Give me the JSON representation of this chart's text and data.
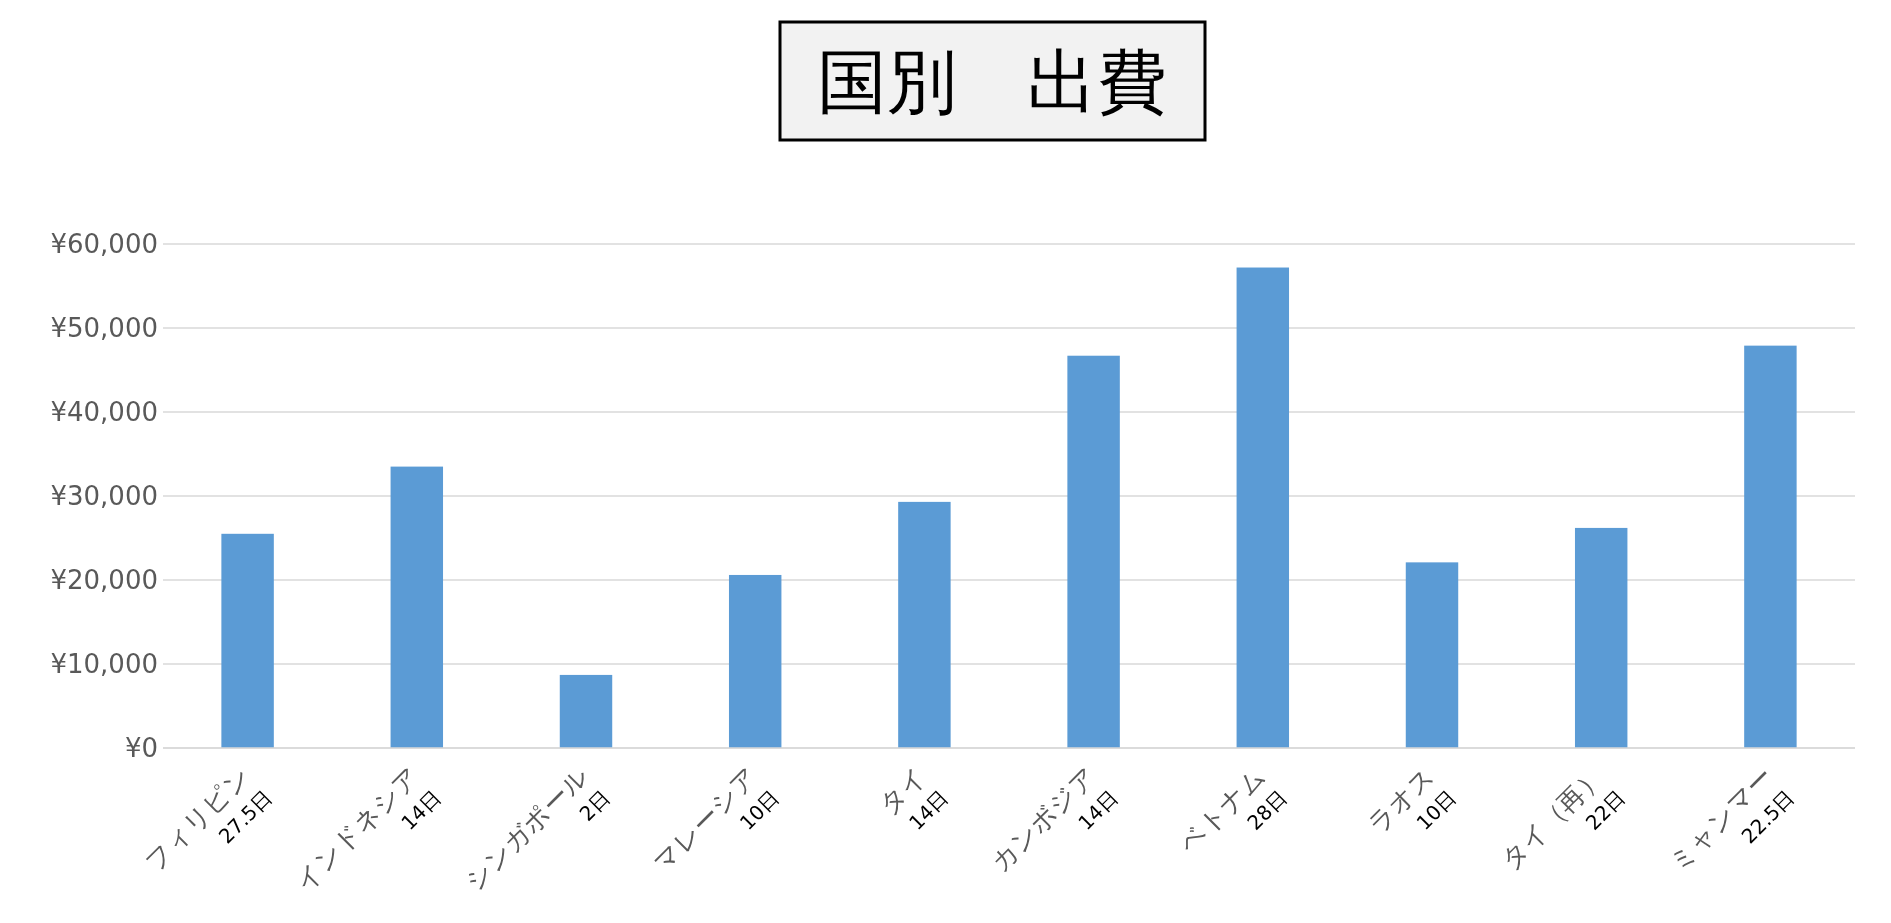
{
  "chart_data": {
    "type": "bar",
    "title": "国別　出費",
    "categories": [
      "フィリピン\n27.5日",
      "インドネシア\n14日",
      "シンガポール\n2日",
      "マレーシア\n10日",
      "タイ\n14日",
      "カンボジア\n14日",
      "ベトナム\n28日",
      "ラオス\n10日",
      "タイ（再）\n22日",
      "ミャンマー\n22.5日"
    ],
    "values": [
      25500,
      33500,
      8700,
      20600,
      29300,
      46700,
      57200,
      22100,
      26200,
      47900
    ],
    "color": "#5b9bd5",
    "ylim": [
      0,
      60000
    ],
    "yticks": [
      {
        "value": 0,
        "label": "¥0"
      },
      {
        "value": 10000,
        "label": "¥10,000"
      },
      {
        "value": 20000,
        "label": "¥20,000"
      },
      {
        "value": 30000,
        "label": "¥30,000"
      },
      {
        "value": 40000,
        "label": "¥40,000"
      },
      {
        "value": 50000,
        "label": "¥50,000"
      },
      {
        "value": 60000,
        "label": "¥60,000"
      }
    ],
    "grid": "y"
  }
}
